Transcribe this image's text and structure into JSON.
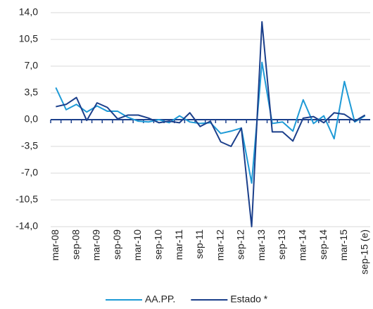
{
  "chart_data": {
    "type": "line",
    "categories": [
      "mar-08",
      null,
      "sep-08",
      null,
      "mar-09",
      null,
      "sep-09",
      null,
      "mar-10",
      null,
      "sep-10",
      null,
      "mar-11",
      null,
      "sep-11",
      null,
      "mar-12",
      null,
      "sep-12",
      null,
      "mar-13",
      null,
      "sep-13",
      null,
      "mar-14",
      null,
      "sep-14",
      null,
      "mar-15",
      null,
      "sep-15 (e)"
    ],
    "series": [
      {
        "name": "AA.PP.",
        "color": "#1e9ad6",
        "values": [
          4.2,
          1.3,
          2.0,
          1.0,
          1.8,
          1.1,
          1.1,
          0.3,
          -0.2,
          -0.3,
          0.0,
          -0.4,
          0.5,
          -0.3,
          -0.5,
          -0.4,
          -1.8,
          -1.5,
          -1.1,
          -8.3,
          7.5,
          -0.5,
          -0.3,
          -1.5,
          2.6,
          -0.5,
          0.5,
          -2.5,
          5.0,
          -0.3,
          0.5
        ]
      },
      {
        "name": "Estado *",
        "color": "#1b3f8b",
        "values": [
          1.7,
          2.0,
          2.9,
          -0.1,
          2.2,
          1.6,
          0.1,
          0.6,
          0.6,
          0.2,
          -0.4,
          -0.2,
          -0.4,
          0.9,
          -0.9,
          -0.2,
          -2.9,
          -3.5,
          -1.1,
          -14.0,
          12.8,
          -1.6,
          -1.6,
          -2.8,
          0.2,
          0.4,
          -0.4,
          0.9,
          0.7,
          -0.2,
          0.6
        ]
      }
    ],
    "ylim": [
      -14,
      14
    ],
    "yticks": [
      {
        "value": -14,
        "label": "-14,0"
      },
      {
        "value": -10.5,
        "label": "-10,5"
      },
      {
        "value": -7,
        "label": "-7,0"
      },
      {
        "value": -3.5,
        "label": "-3,5"
      },
      {
        "value": 0,
        "label": "0,0"
      },
      {
        "value": 3.5,
        "label": "3,5"
      },
      {
        "value": 7,
        "label": "7,0"
      },
      {
        "value": 10.5,
        "label": "10,5"
      },
      {
        "value": 14,
        "label": "14,0"
      }
    ],
    "grid": true,
    "legend": "bottom"
  }
}
